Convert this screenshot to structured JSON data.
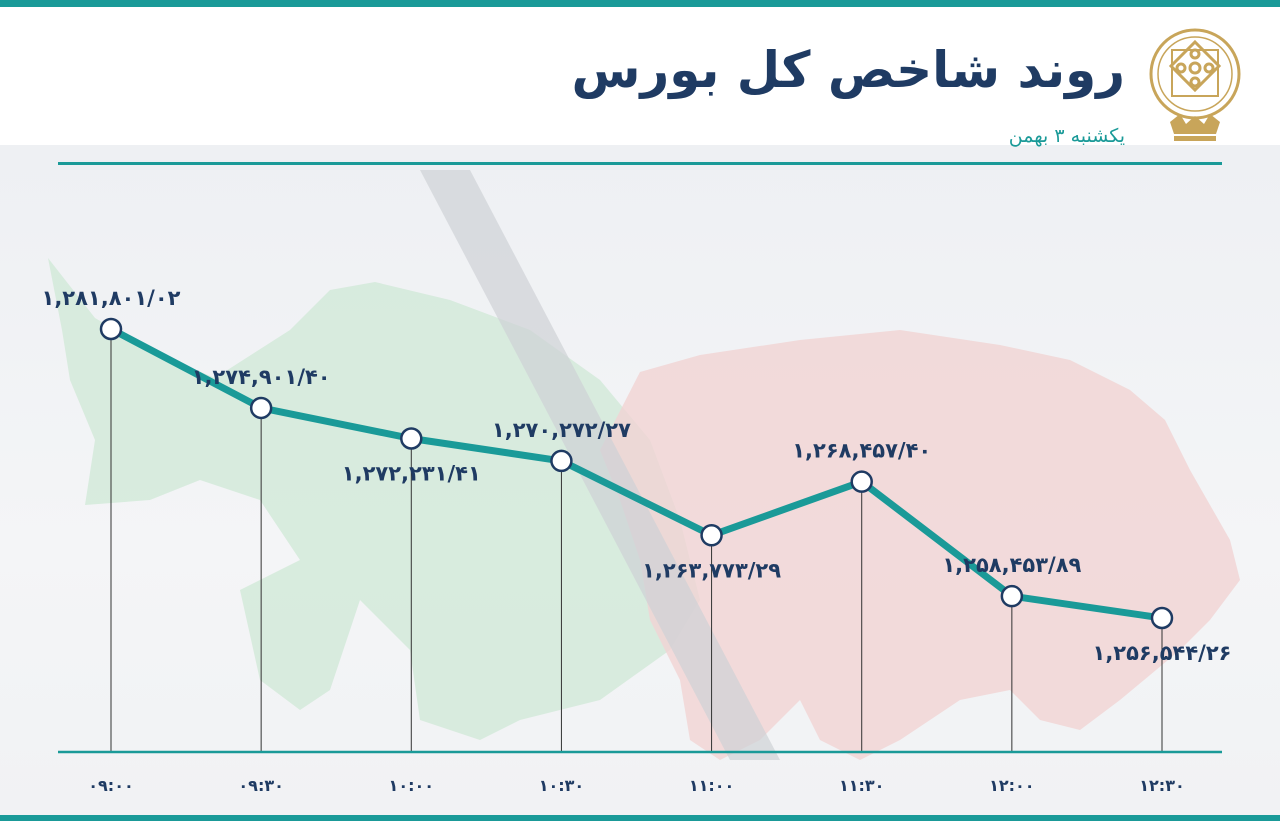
{
  "header": {
    "title": "روند شاخص کل بورس",
    "subtitle": "یکشنبه ۳ بهمن"
  },
  "colors": {
    "accent": "#1a9a98",
    "title": "#1f3b63",
    "value_label": "#1f3b63",
    "tick_label": "#1f3b63",
    "logo_gold": "#c8a55a",
    "bull_green": "#cfe8d6",
    "bear_red": "#f1d3d3",
    "divider": "#1a9a98"
  },
  "icons": {
    "logo": "stock-exchange-emblem-icon",
    "bull": "bull-silhouette-icon",
    "bear": "bear-silhouette-icon"
  },
  "chart_data": {
    "type": "line",
    "title": "روند شاخص کل بورس",
    "xlabel": "",
    "ylabel": "",
    "grid": false,
    "legend": "none",
    "categories": [
      "۰۹:۰۰",
      "۰۹:۳۰",
      "۱۰:۰۰",
      "۱۰:۳۰",
      "۱۱:۰۰",
      "۱۱:۳۰",
      "۱۲:۰۰",
      "۱۲:۳۰"
    ],
    "values": [
      1281801.02,
      1274901.4,
      1272231.41,
      1270272.27,
      1263773.29,
      1268457.4,
      1258453.89,
      1256544.26
    ],
    "value_labels": [
      "۱,۲۸۱,۸۰۱/۰۲",
      "۱,۲۷۴,۹۰۱/۴۰",
      "۱,۲۷۲,۲۳۱/۴۱",
      "۱,۲۷۰,۲۷۲/۲۷",
      "۱,۲۶۳,۷۷۳/۲۹",
      "۱,۲۶۸,۴۵۷/۴۰",
      "۱,۲۵۸,۴۵۳/۸۹",
      "۱,۲۵۶,۵۴۴/۲۶"
    ]
  }
}
